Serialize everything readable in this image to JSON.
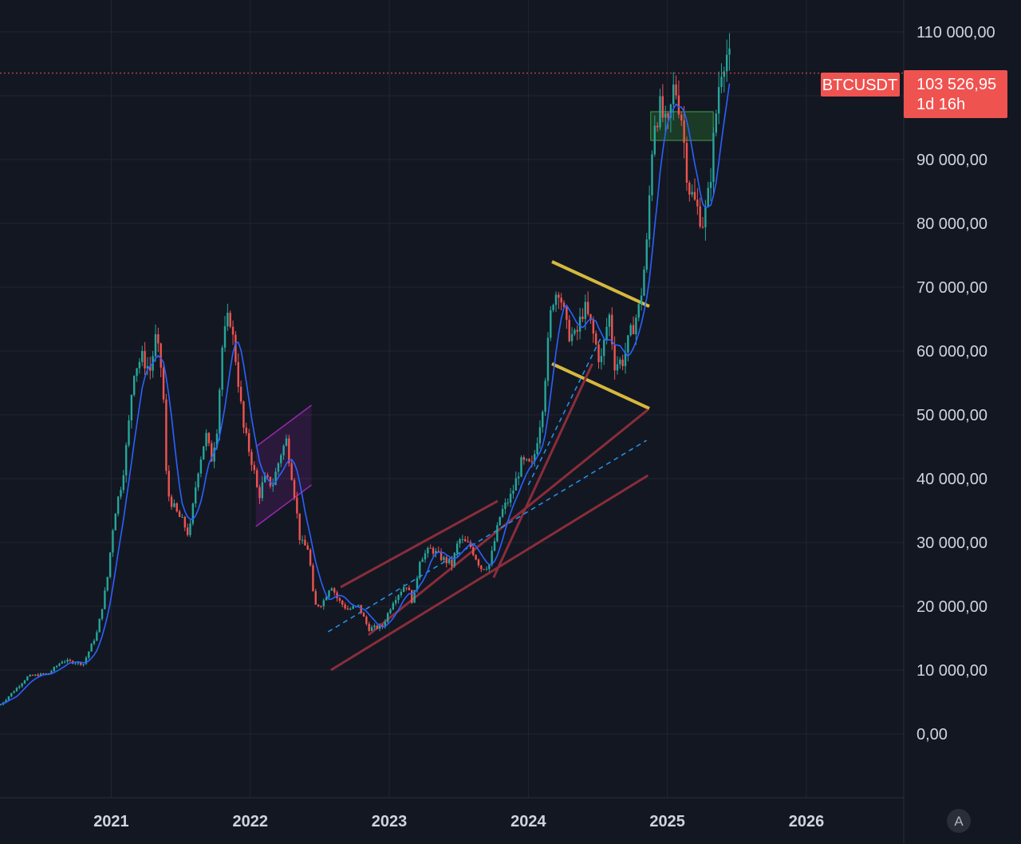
{
  "symbol": "BTCUSDT",
  "price_label": "103 526,95",
  "countdown": "1d 16h",
  "auto_scale_button": "A",
  "colors": {
    "background": "#131722",
    "grid": "#232632",
    "up": "#26a69a",
    "down": "#ef5350",
    "ma": "#2962ff",
    "price_line": "#ef5350",
    "channel": "#8a2d3a",
    "flag": "#d6b83e",
    "purple": "#9c27b0",
    "dashed_blue": "#2196f3",
    "zone_green": "#2e7d32"
  },
  "chart_data": {
    "type": "candlestick",
    "title": "",
    "ylabel": "",
    "xlabel": "",
    "y_axis": {
      "ticks": [
        "0,00",
        "10 000,00",
        "20 000,00",
        "30 000,00",
        "40 000,00",
        "50 000,00",
        "60 000,00",
        "70 000,00",
        "80 000,00",
        "90 000,00",
        "110 000,00"
      ],
      "tick_values": [
        0,
        10000,
        20000,
        30000,
        40000,
        50000,
        60000,
        70000,
        80000,
        90000,
        110000
      ],
      "range": [
        -10000,
        115000
      ]
    },
    "x_axis": {
      "ticks": [
        "2021",
        "2022",
        "2023",
        "2024",
        "2025",
        "2026"
      ],
      "tick_values": [
        2021,
        2022,
        2023,
        2024,
        2025,
        2026
      ],
      "range": [
        2020.2,
        2026.7
      ]
    },
    "last_price": 103526.95,
    "price_series": [
      {
        "t": 2020.2,
        "p": 4500
      },
      {
        "t": 2020.4,
        "p": 9000
      },
      {
        "t": 2020.55,
        "p": 9500
      },
      {
        "t": 2020.65,
        "p": 11500
      },
      {
        "t": 2020.8,
        "p": 11000
      },
      {
        "t": 2020.9,
        "p": 16000
      },
      {
        "t": 2020.97,
        "p": 24000
      },
      {
        "t": 2021.02,
        "p": 34000
      },
      {
        "t": 2021.08,
        "p": 40000
      },
      {
        "t": 2021.12,
        "p": 47000
      },
      {
        "t": 2021.16,
        "p": 57000
      },
      {
        "t": 2021.22,
        "p": 59000
      },
      {
        "t": 2021.28,
        "p": 57000
      },
      {
        "t": 2021.32,
        "p": 62000
      },
      {
        "t": 2021.37,
        "p": 56000
      },
      {
        "t": 2021.4,
        "p": 38000
      },
      {
        "t": 2021.46,
        "p": 35000
      },
      {
        "t": 2021.52,
        "p": 33000
      },
      {
        "t": 2021.56,
        "p": 31000
      },
      {
        "t": 2021.62,
        "p": 41000
      },
      {
        "t": 2021.68,
        "p": 47000
      },
      {
        "t": 2021.72,
        "p": 43000
      },
      {
        "t": 2021.76,
        "p": 48000
      },
      {
        "t": 2021.8,
        "p": 61000
      },
      {
        "t": 2021.85,
        "p": 66000
      },
      {
        "t": 2021.9,
        "p": 58000
      },
      {
        "t": 2021.95,
        "p": 48000
      },
      {
        "t": 2022.02,
        "p": 42000
      },
      {
        "t": 2022.06,
        "p": 37000
      },
      {
        "t": 2022.1,
        "p": 40000
      },
      {
        "t": 2022.16,
        "p": 39000
      },
      {
        "t": 2022.22,
        "p": 44000
      },
      {
        "t": 2022.26,
        "p": 46000
      },
      {
        "t": 2022.31,
        "p": 39000
      },
      {
        "t": 2022.36,
        "p": 30000
      },
      {
        "t": 2022.42,
        "p": 29000
      },
      {
        "t": 2022.46,
        "p": 20000
      },
      {
        "t": 2022.52,
        "p": 20500
      },
      {
        "t": 2022.58,
        "p": 23500
      },
      {
        "t": 2022.63,
        "p": 21000
      },
      {
        "t": 2022.7,
        "p": 19500
      },
      {
        "t": 2022.78,
        "p": 20000
      },
      {
        "t": 2022.85,
        "p": 16500
      },
      {
        "t": 2022.95,
        "p": 16800
      },
      {
        "t": 2023.03,
        "p": 21000
      },
      {
        "t": 2023.12,
        "p": 23500
      },
      {
        "t": 2023.17,
        "p": 20500
      },
      {
        "t": 2023.22,
        "p": 27500
      },
      {
        "t": 2023.3,
        "p": 29000
      },
      {
        "t": 2023.38,
        "p": 27500
      },
      {
        "t": 2023.45,
        "p": 26500
      },
      {
        "t": 2023.5,
        "p": 30500
      },
      {
        "t": 2023.58,
        "p": 29500
      },
      {
        "t": 2023.66,
        "p": 26000
      },
      {
        "t": 2023.72,
        "p": 26500
      },
      {
        "t": 2023.8,
        "p": 34500
      },
      {
        "t": 2023.88,
        "p": 37500
      },
      {
        "t": 2023.95,
        "p": 42500
      },
      {
        "t": 2024.03,
        "p": 42000
      },
      {
        "t": 2024.1,
        "p": 51000
      },
      {
        "t": 2024.17,
        "p": 68000
      },
      {
        "t": 2024.22,
        "p": 70000
      },
      {
        "t": 2024.28,
        "p": 63000
      },
      {
        "t": 2024.34,
        "p": 62000
      },
      {
        "t": 2024.4,
        "p": 67000
      },
      {
        "t": 2024.45,
        "p": 64000
      },
      {
        "t": 2024.52,
        "p": 58000
      },
      {
        "t": 2024.58,
        "p": 66000
      },
      {
        "t": 2024.62,
        "p": 58000
      },
      {
        "t": 2024.68,
        "p": 58500
      },
      {
        "t": 2024.74,
        "p": 63000
      },
      {
        "t": 2024.8,
        "p": 67000
      },
      {
        "t": 2024.85,
        "p": 76000
      },
      {
        "t": 2024.9,
        "p": 96000
      },
      {
        "t": 2024.95,
        "p": 98000
      },
      {
        "t": 2025.0,
        "p": 94000
      },
      {
        "t": 2025.05,
        "p": 102000
      },
      {
        "t": 2025.1,
        "p": 97000
      },
      {
        "t": 2025.15,
        "p": 86000
      },
      {
        "t": 2025.2,
        "p": 83000
      },
      {
        "t": 2025.26,
        "p": 80000
      },
      {
        "t": 2025.3,
        "p": 85000
      },
      {
        "t": 2025.34,
        "p": 95000
      },
      {
        "t": 2025.38,
        "p": 104000
      },
      {
        "t": 2025.42,
        "p": 107000
      },
      {
        "t": 2025.46,
        "p": 104500
      }
    ],
    "drawings": [
      {
        "type": "zone",
        "t1": 2024.88,
        "t2": 2025.33,
        "p1": 93000,
        "p2": 97500
      },
      {
        "type": "flag",
        "t1": 2024.17,
        "p1": 74000,
        "t2": 2024.87,
        "p2": 67000
      },
      {
        "type": "flag",
        "t1": 2024.17,
        "p1": 58000,
        "t2": 2024.87,
        "p2": 51000
      },
      {
        "type": "channel",
        "t1": 2022.65,
        "p1": 23000,
        "t2": 2023.78,
        "p2": 36500
      },
      {
        "type": "channel",
        "t1": 2022.58,
        "p1": 10000,
        "t2": 2024.86,
        "p2": 40500
      },
      {
        "type": "channel",
        "t1": 2022.85,
        "p1": 15500,
        "t2": 2024.86,
        "p2": 50800
      },
      {
        "type": "channel",
        "t1": 2023.75,
        "p1": 24500,
        "t2": 2024.46,
        "p2": 58000
      },
      {
        "type": "dashed",
        "t1": 2022.56,
        "p1": 16000,
        "t2": 2024.85,
        "p2": 46000
      },
      {
        "type": "dashed",
        "t1": 2024.0,
        "p1": 39000,
        "t2": 2024.52,
        "p2": 62000
      },
      {
        "type": "purple",
        "t1": 2022.04,
        "p1": 32500,
        "t2": 2022.44,
        "p2": 39000
      },
      {
        "type": "purple",
        "t1": 2022.04,
        "p1": 45000,
        "t2": 2022.44,
        "p2": 51500
      }
    ]
  }
}
